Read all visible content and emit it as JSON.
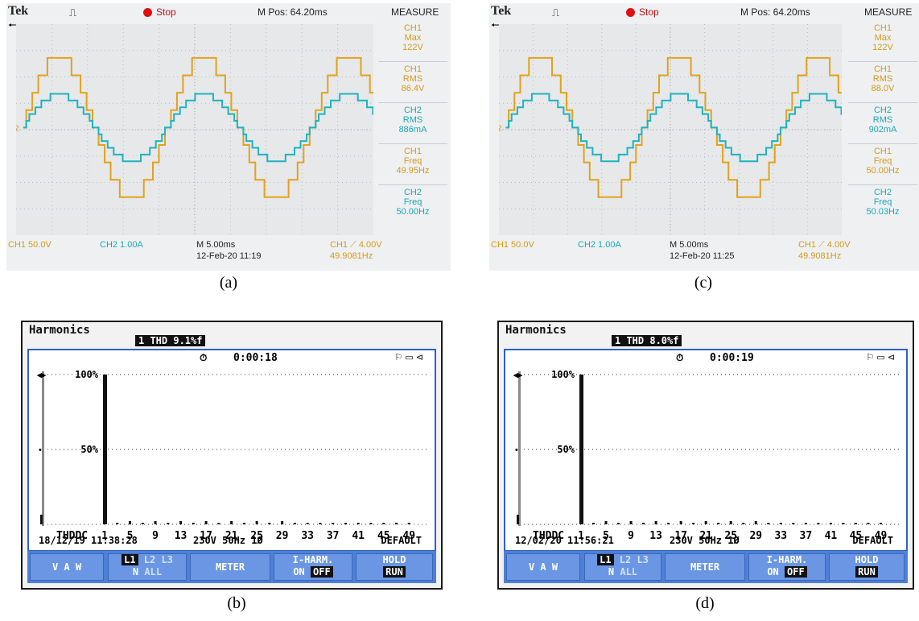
{
  "scopes": [
    {
      "id": "a",
      "caption": "(a)",
      "brand": "Tek",
      "trigger_symbol": "⎍",
      "status": "Stop",
      "mpos": "M Pos: 64.20ms",
      "measure_title": "MEASURE",
      "measurements": [
        {
          "ch": "CH1",
          "type": "Max",
          "value": "122V",
          "color": "#d89a18"
        },
        {
          "ch": "CH1",
          "type": "RMS",
          "value": "86.4V",
          "color": "#d89a18"
        },
        {
          "ch": "CH2",
          "type": "RMS",
          "value": "886mA",
          "color": "#1ba9b6"
        },
        {
          "ch": "CH1",
          "type": "Freq",
          "value": "49.95Hz",
          "color": "#d89a18"
        },
        {
          "ch": "CH2",
          "type": "Freq",
          "value": "50.00Hz",
          "color": "#1ba9b6"
        }
      ],
      "ch1_scale": "CH1  50.0V",
      "ch2_scale": "CH2  1.00A",
      "timebase": "M 5.00ms",
      "datetime": "12-Feb-20 11:19",
      "trigger": "CH1 ⟋ 4.00V",
      "trigger_freq": "49.9081Hz",
      "ground_marker": "2"
    },
    {
      "id": "c",
      "caption": "(c)",
      "brand": "Tek",
      "trigger_symbol": "⎍",
      "status": "Stop",
      "mpos": "M Pos: 64.20ms",
      "measure_title": "MEASURE",
      "measurements": [
        {
          "ch": "CH1",
          "type": "Max",
          "value": "122V",
          "color": "#d89a18"
        },
        {
          "ch": "CH1",
          "type": "RMS",
          "value": "88.0V",
          "color": "#d89a18"
        },
        {
          "ch": "CH2",
          "type": "RMS",
          "value": "902mA",
          "color": "#1ba9b6"
        },
        {
          "ch": "CH1",
          "type": "Freq",
          "value": "50.00Hz",
          "color": "#d89a18"
        },
        {
          "ch": "CH2",
          "type": "Freq",
          "value": "50.03Hz",
          "color": "#1ba9b6"
        }
      ],
      "ch1_scale": "CH1  50.0V",
      "ch2_scale": "CH2  1.00A",
      "timebase": "M 5.00ms",
      "datetime": "12-Feb-20 11:25",
      "trigger": "CH1 ⟋ 4.00V",
      "trigger_freq": "49.9081Hz",
      "ground_marker": "2"
    }
  ],
  "harmonics": [
    {
      "id": "b",
      "caption": "(b)",
      "title": "Harmonics",
      "thd": "1 THD  9.1%f",
      "timer": "0:00:18",
      "timer_icon": "⏱",
      "status_icons": "⚐ ▭ ⊲",
      "y_labels": [
        "100%",
        "50%"
      ],
      "x_labels": [
        "THDDC",
        "1",
        "5",
        "9",
        "13",
        "17",
        "21",
        "25",
        "29",
        "33",
        "37",
        "41",
        "45",
        "49"
      ],
      "datetime": "18/12/19  11:38:28",
      "supply": "230V  50Hz 1Ø",
      "profile": "DEFAULT",
      "buttons": {
        "vaw": "V  A  W",
        "l1": "L1",
        "l23": "L2 L3",
        "n": "N",
        "all": "ALL",
        "meter": "METER",
        "iharm": "I-HARM.",
        "on": "ON",
        "off": "OFF",
        "hold": "HOLD",
        "run": "RUN"
      }
    },
    {
      "id": "d",
      "caption": "(d)",
      "title": "Harmonics",
      "thd": "1 THD  8.0%f",
      "timer": "0:00:19",
      "timer_icon": "⏱",
      "status_icons": "⚐ ▭ ⊲",
      "y_labels": [
        "100%",
        "50%"
      ],
      "x_labels": [
        "THDDC",
        "1",
        "5",
        "9",
        "13",
        "17",
        "21",
        "25",
        "29",
        "33",
        "37",
        "41",
        "45",
        "49"
      ],
      "datetime": "12/02/20  11:56:21",
      "supply": "230V  50Hz 1Ø",
      "profile": "DEFAULT",
      "buttons": {
        "vaw": "V  A  W",
        "l1": "L1",
        "l23": "L2 L3",
        "n": "N",
        "all": "ALL",
        "meter": "METER",
        "iharm": "I-HARM.",
        "on": "ON",
        "off": "OFF",
        "hold": "HOLD",
        "run": "RUN"
      }
    }
  ],
  "colors": {
    "ch1": "#e3a21a",
    "ch2": "#1fb3bf",
    "bar": "#111111",
    "thd_bar": "#8a8a8a"
  }
}
